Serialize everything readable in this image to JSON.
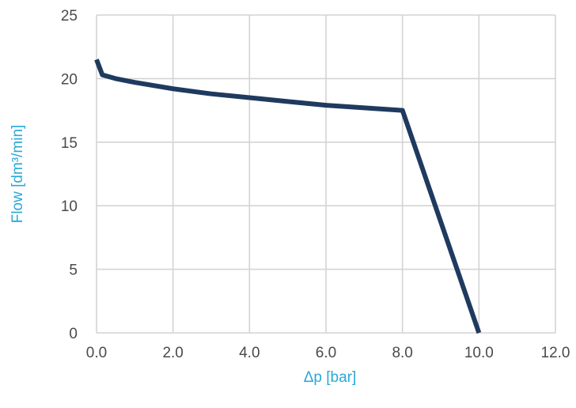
{
  "chart_data": {
    "type": "line",
    "xlabel": "Δp [bar]",
    "ylabel": "Flow [dm³/min]",
    "xlim": [
      0,
      12
    ],
    "ylim": [
      0,
      25
    ],
    "x_ticks": [
      "0.0",
      "2.0",
      "4.0",
      "6.0",
      "8.0",
      "10.0",
      "12.0"
    ],
    "y_ticks": [
      "0",
      "5",
      "10",
      "15",
      "20",
      "25"
    ],
    "grid": true,
    "series": [
      {
        "x": [
          0.0,
          0.15,
          0.5,
          1.0,
          2.0,
          3.0,
          4.0,
          5.0,
          6.0,
          7.0,
          8.0,
          10.0
        ],
        "y": [
          21.5,
          20.3,
          20.0,
          19.7,
          19.2,
          18.8,
          18.5,
          18.2,
          17.9,
          17.7,
          17.5,
          0
        ]
      }
    ],
    "colors": {
      "line": "#1f3a5f",
      "axis_label": "#2aa8d8",
      "tick": "#4a4a4a",
      "grid": "#d4d4d4"
    }
  }
}
